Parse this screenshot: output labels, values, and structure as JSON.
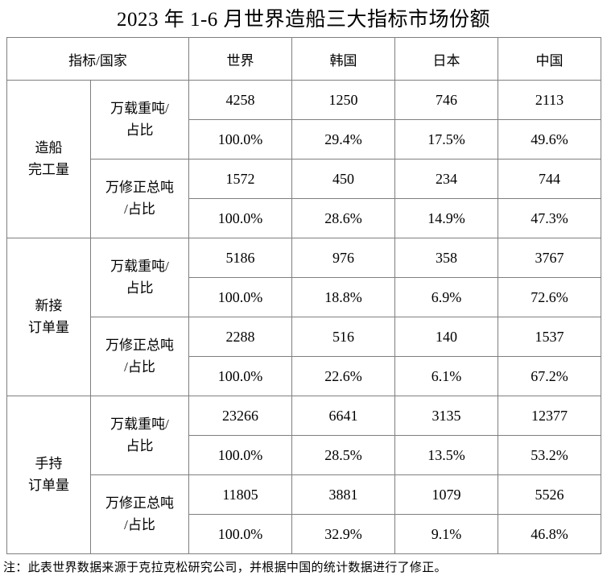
{
  "title": "2023 年 1-6 月世界造船三大指标市场份额",
  "table": {
    "corner_header": "指标/国家",
    "country_headers": [
      "世界",
      "韩国",
      "日本",
      "中国"
    ],
    "groups": [
      {
        "name": "造船\n完工量",
        "metrics": [
          {
            "label": "万载重吨/\n占比",
            "values": [
              "4258",
              "1250",
              "746",
              "2113"
            ],
            "shares": [
              "100.0%",
              "29.4%",
              "17.5%",
              "49.6%"
            ]
          },
          {
            "label": "万修正总吨\n/占比",
            "values": [
              "1572",
              "450",
              "234",
              "744"
            ],
            "shares": [
              "100.0%",
              "28.6%",
              "14.9%",
              "47.3%"
            ]
          }
        ]
      },
      {
        "name": "新接\n订单量",
        "metrics": [
          {
            "label": "万载重吨/\n占比",
            "values": [
              "5186",
              "976",
              "358",
              "3767"
            ],
            "shares": [
              "100.0%",
              "18.8%",
              "6.9%",
              "72.6%"
            ]
          },
          {
            "label": "万修正总吨\n/占比",
            "values": [
              "2288",
              "516",
              "140",
              "1537"
            ],
            "shares": [
              "100.0%",
              "22.6%",
              "6.1%",
              "67.2%"
            ]
          }
        ]
      },
      {
        "name": "手持\n订单量",
        "metrics": [
          {
            "label": "万载重吨/\n占比",
            "values": [
              "23266",
              "6641",
              "3135",
              "12377"
            ],
            "shares": [
              "100.0%",
              "28.5%",
              "13.5%",
              "53.2%"
            ]
          },
          {
            "label": "万修正总吨\n/占比",
            "values": [
              "11805",
              "3881",
              "1079",
              "5526"
            ],
            "shares": [
              "100.0%",
              "32.9%",
              "9.1%",
              "46.8%"
            ]
          }
        ]
      }
    ]
  },
  "footnote": "注：此表世界数据来源于克拉克松研究公司，并根据中国的统计数据进行了修正。",
  "colors": {
    "background": "#ffffff",
    "text": "#000000",
    "border": "#7f7f7f"
  }
}
